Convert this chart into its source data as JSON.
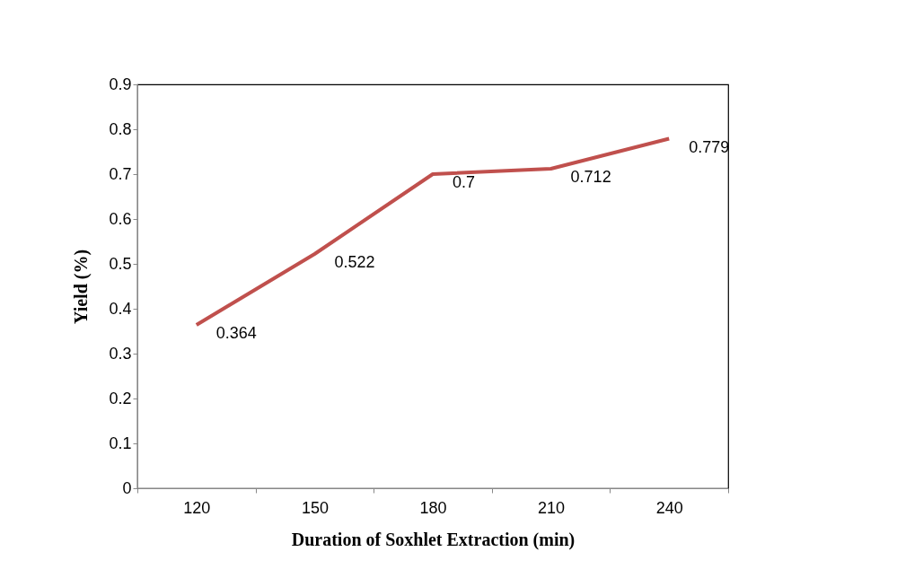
{
  "chart_data": {
    "type": "line",
    "categories": [
      "120",
      "150",
      "180",
      "210",
      "240"
    ],
    "series": [
      {
        "color": "#c0504d",
        "values": [
          0.364,
          0.522,
          0.7,
          0.712,
          0.779
        ]
      }
    ],
    "xlabel": "Duration of Soxhlet Extraction (min)",
    "ylabel": "Yield (%)",
    "ylim": [
      0,
      0.9
    ],
    "yticks": [
      0,
      0.1,
      0.2,
      0.3,
      0.4,
      0.5,
      0.6,
      0.7,
      0.8,
      0.9
    ],
    "data_labels": true
  }
}
